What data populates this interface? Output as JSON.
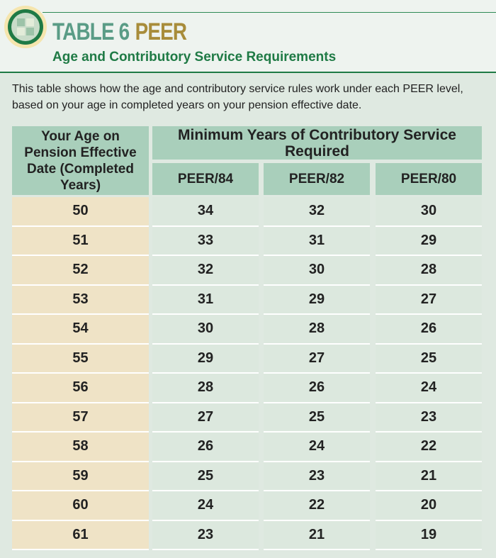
{
  "header": {
    "label": "TABLE 6",
    "name": "PEER",
    "subtitle": "Age and Contributory Service Requirements"
  },
  "description": "This table shows how the age and contributory service rules work under each PEER level, based on your age in completed years on your pension effective date.",
  "table": {
    "row_header": "Your Age on Pension Effective Date (Completed Years)",
    "group_header": "Minimum Years of Contributory Service Required",
    "columns": [
      "PEER/84",
      "PEER/82",
      "PEER/80"
    ],
    "rows": [
      [
        50,
        34,
        32,
        30
      ],
      [
        51,
        33,
        31,
        29
      ],
      [
        52,
        32,
        30,
        28
      ],
      [
        53,
        31,
        29,
        27
      ],
      [
        54,
        30,
        28,
        26
      ],
      [
        55,
        29,
        27,
        25
      ],
      [
        56,
        28,
        26,
        24
      ],
      [
        57,
        27,
        25,
        23
      ],
      [
        58,
        26,
        24,
        22
      ],
      [
        59,
        25,
        23,
        21
      ],
      [
        60,
        24,
        22,
        20
      ],
      [
        61,
        23,
        21,
        19
      ]
    ]
  }
}
